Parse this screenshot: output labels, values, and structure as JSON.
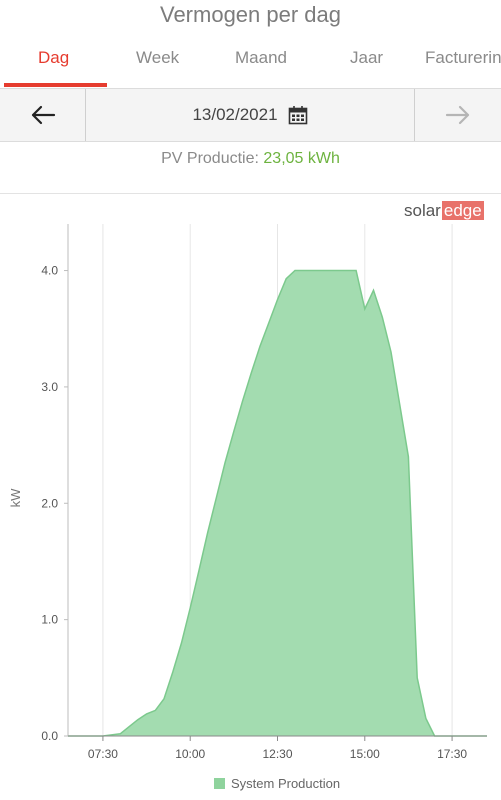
{
  "header": {
    "title": "Vermogen per dag"
  },
  "tabs": [
    {
      "label": "Dag",
      "active": true
    },
    {
      "label": "Week",
      "active": false
    },
    {
      "label": "Maand",
      "active": false
    },
    {
      "label": "Jaar",
      "active": false
    },
    {
      "label": "Facturering",
      "active": false
    }
  ],
  "datebar": {
    "date": "13/02/2021",
    "prev_icon": "arrow-left-icon",
    "next_icon": "arrow-right-icon",
    "calendar_icon": "calendar-icon"
  },
  "summary": {
    "label": "PV Productie:",
    "value": "23,05 kWh",
    "value_color": "#6db33f"
  },
  "logo": {
    "part1": "solar",
    "part2": "edge"
  },
  "colors": {
    "accent": "#e63c2f",
    "area_fill": "#a3dcb0",
    "area_stroke": "#7cc98d",
    "logo_box": "#e8726a"
  },
  "chart_data": {
    "type": "area",
    "ylabel": "kW",
    "xlabel": "",
    "ylim": [
      0,
      4.4
    ],
    "yticks": [
      "0.0",
      "1.0",
      "2.0",
      "3.0",
      "4.0"
    ],
    "xticks": [
      "07:30",
      "10:00",
      "12:30",
      "15:00",
      "17:30"
    ],
    "grid": "vertical",
    "legend_position": "bottom",
    "series": [
      {
        "name": "System Production",
        "x": [
          "06:30",
          "07:00",
          "07:30",
          "08:00",
          "08:15",
          "08:30",
          "08:45",
          "09:00",
          "09:15",
          "09:30",
          "09:45",
          "10:00",
          "10:15",
          "10:30",
          "10:45",
          "11:00",
          "11:15",
          "11:30",
          "11:45",
          "12:00",
          "12:15",
          "12:30",
          "12:45",
          "13:00",
          "13:15",
          "13:30",
          "13:45",
          "14:00",
          "14:15",
          "14:30",
          "14:45",
          "15:00",
          "15:15",
          "15:30",
          "15:45",
          "16:00",
          "16:15",
          "16:30",
          "16:45",
          "17:00",
          "17:15",
          "17:30",
          "18:00",
          "18:30"
        ],
        "values": [
          0.0,
          0.0,
          0.0,
          0.02,
          0.08,
          0.14,
          0.19,
          0.22,
          0.32,
          0.55,
          0.8,
          1.1,
          1.42,
          1.75,
          2.05,
          2.35,
          2.62,
          2.88,
          3.12,
          3.35,
          3.55,
          3.75,
          3.93,
          4.0,
          4.0,
          4.0,
          4.0,
          4.0,
          4.0,
          4.0,
          4.0,
          3.67,
          3.83,
          3.6,
          3.3,
          2.85,
          2.4,
          0.5,
          0.15,
          0.0,
          0.0,
          0.0,
          0.0,
          0.0
        ]
      }
    ]
  }
}
